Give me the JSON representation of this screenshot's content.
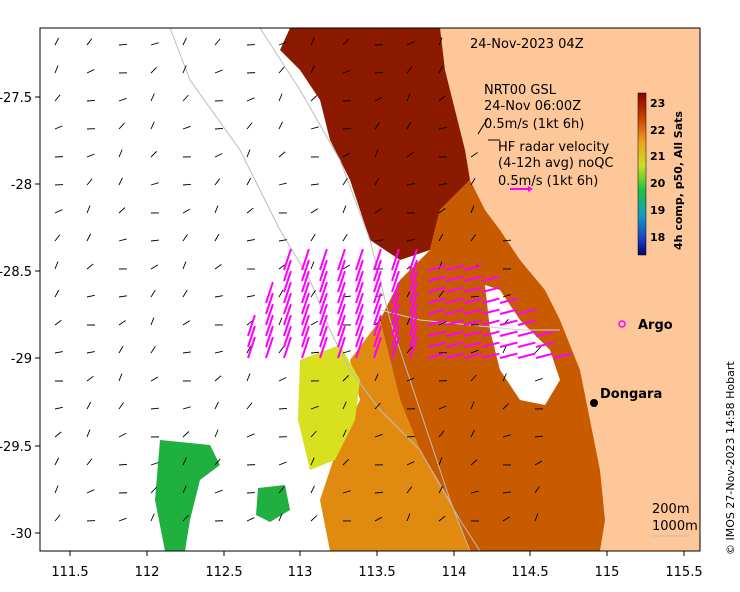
{
  "map": {
    "date_label": "24-Nov-2023 04Z",
    "model_label": "NRT00 GSL",
    "model_time": "24-Nov 06:00Z",
    "model_scale": "0.5m/s (1kt 6h)",
    "radar_label_1": "HF radar velocity",
    "radar_label_2": "(4-12h avg) noQC",
    "radar_scale": "0.5m/s (1kt 6h)",
    "argo_label": "Argo",
    "dongara_label": "Dongara",
    "contour_200": "200m",
    "contour_1000": "1000m",
    "credit": "© IMOS 27-Nov-2023 14:58 Hobart",
    "colorbar_title": "4h comp, p50, All Sats",
    "colorbar_ticks": [
      "23",
      "22",
      "21",
      "20",
      "19",
      "18"
    ],
    "x_ticks": [
      "111.5",
      "112",
      "112.5",
      "113",
      "113.5",
      "114",
      "114.5",
      "115",
      "115.5"
    ],
    "y_ticks": [
      "-27.5",
      "-28",
      "-28.5",
      "-29",
      "-29.5",
      "-30"
    ]
  },
  "colors": {
    "land": "#fdc79a",
    "sst_hot": "#8b1a00",
    "sst_warm": "#c85a00",
    "sst_mid": "#e08a10",
    "sst_yellow": "#d8e020",
    "sst_green": "#20b040",
    "radar_vectors": "#ff00ff",
    "argo": "#ff00ff"
  }
}
